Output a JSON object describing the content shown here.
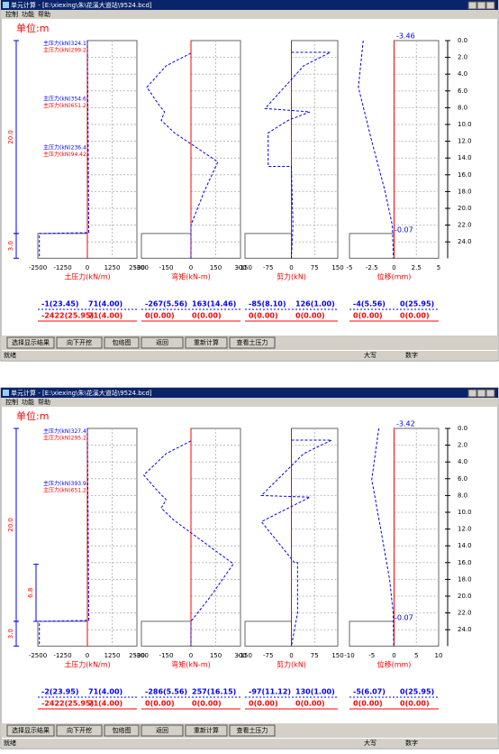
{
  "windows": [
    {
      "title": "单元计算 - [E:\\xiexing\\朱\\花溪大道站\\9524.bcd]",
      "menu": [
        "控制",
        "功能",
        "帮助"
      ],
      "unit": "单位:m",
      "depth_ticks": [
        "0.0",
        "2.0",
        "4.0",
        "6.0",
        "8.0",
        "10.0",
        "12.0",
        "14.0",
        "16.0",
        "18.0",
        "20.0",
        "22.0",
        "24.0"
      ],
      "top_value": "-3.46",
      "bottom_value": "-0.07",
      "dims": [
        "20.0",
        "3.0"
      ],
      "pressure_labels": [
        "主压力(kN)324.1",
        "主压力(kN)299.2",
        "主压力(kN)354.6",
        "主压力(kN)651.2",
        "主压力(kN)236.4",
        "主压力(kN)94.42"
      ],
      "panels": [
        {
          "xticks": [
            "-2500",
            "-1250",
            "0",
            "1250",
            "2500"
          ],
          "xlim": [
            -2500,
            2500
          ],
          "xlabel": "土压力(kN/m)",
          "curve": {
            "depth": [
              0,
              22.9,
              23,
              25.95
            ],
            "value": [
              0,
              71,
              -2422,
              -2422
            ]
          },
          "results": {
            "blue": [
              "-1(23.45)",
              "71(4.00)"
            ],
            "red": [
              "-2422(25.95)",
              "71(4.00)"
            ]
          }
        },
        {
          "xticks": [
            "-300",
            "-150",
            "0",
            "150",
            "300"
          ],
          "xlim": [
            -300,
            300
          ],
          "xlabel": "弯矩(kN-m)",
          "curve": {
            "depth": [
              1.5,
              3,
              5.56,
              7.5,
              8.5,
              9.5,
              11,
              14.46,
              18,
              22,
              25.95
            ],
            "value": [
              0,
              -150,
              -267,
              -200,
              -160,
              -180,
              -100,
              163,
              80,
              0,
              0
            ]
          },
          "results": {
            "blue": [
              "-267(5.56)",
              "163(14.46)"
            ],
            "red": [
              "0(0.00)",
              "0(0.00)"
            ]
          }
        },
        {
          "xticks": [
            "-150",
            "-75",
            "0",
            "75",
            "150"
          ],
          "xlim": [
            -150,
            150
          ],
          "xlabel": "剪力(kN)",
          "curve": {
            "depth": [
              1.4,
              1.4,
              3,
              8.1,
              8.5,
              9.5,
              11,
              15,
              15,
              22,
              25.95
            ],
            "value": [
              0,
              126,
              40,
              -85,
              60,
              -10,
              -75,
              -75,
              0,
              5,
              0
            ]
          },
          "results": {
            "blue": [
              "-85(8.10)",
              "126(1.00)"
            ],
            "red": [
              "0(0.00)",
              "0(0.00)"
            ]
          }
        },
        {
          "xticks": [
            "-5",
            "-2.5",
            "0",
            "2.5",
            "5"
          ],
          "xlim": [
            -5,
            5
          ],
          "xlabel": "位移(mm)",
          "curve": {
            "depth": [
              0,
              5.56,
              12,
              18,
              22,
              25.95
            ],
            "value": [
              -3.46,
              -4,
              -2.5,
              -1,
              -0.2,
              -0.07
            ]
          },
          "results": {
            "blue": [
              "-4(5.56)",
              "0(25.95)"
            ],
            "red": [
              "0(0.00)",
              "0(0.00)"
            ]
          }
        }
      ],
      "buttons": [
        "选择显示结果",
        "向下开挖",
        "包络图",
        "返回",
        "重新计算",
        "查看土压力"
      ],
      "status": [
        "就绪",
        "大写",
        "数字"
      ]
    },
    {
      "title": "单元计算 - [E:\\xiexing\\朱\\花溪大道站\\9524.bcd]",
      "menu": [
        "控制",
        "功能",
        "帮助"
      ],
      "unit": "单位:m",
      "depth_ticks": [
        "0.0",
        "2.0",
        "4.0",
        "6.0",
        "8.0",
        "10.0",
        "12.0",
        "14.0",
        "16.0",
        "18.0",
        "20.0",
        "22.0",
        "24.0"
      ],
      "top_value": "-3.42",
      "bottom_value": "-0.07",
      "dims": [
        "20.0",
        "6.8",
        "3.0"
      ],
      "pressure_labels": [
        "主压力(kN)327.4",
        "主压力(kN)295.2",
        "主压力(kN)393.9",
        "主压力(kN)651.2"
      ],
      "panels": [
        {
          "xticks": [
            "-2500",
            "-1250",
            "0",
            "1250",
            "2500"
          ],
          "xlim": [
            -2500,
            2500
          ],
          "xlabel": "土压力(kN/m)",
          "curve": {
            "depth": [
              0,
              22.9,
              23,
              25.95
            ],
            "value": [
              0,
              71,
              -2422,
              -2422
            ]
          },
          "results": {
            "blue": [
              "-2(23.95)",
              "71(4.00)"
            ],
            "red": [
              "-2422(25.95)",
              "71(4.00)"
            ]
          }
        },
        {
          "xticks": [
            "-300",
            "-150",
            "0",
            "150",
            "300"
          ],
          "xlim": [
            -300,
            300
          ],
          "xlabel": "弯矩(kN-m)",
          "curve": {
            "depth": [
              1.5,
              3,
              5.56,
              7.5,
              8.5,
              9.5,
              11,
              16.15,
              20,
              23,
              25.95
            ],
            "value": [
              0,
              -150,
              -286,
              -200,
              -150,
              -180,
              -100,
              257,
              120,
              0,
              0
            ]
          },
          "results": {
            "blue": [
              "-286(5.56)",
              "257(16.15)"
            ],
            "red": [
              "0(0.00)",
              "0(0.00)"
            ]
          }
        },
        {
          "xticks": [
            "-150",
            "-75",
            "0",
            "75",
            "150"
          ],
          "xlim": [
            -150,
            150
          ],
          "xlabel": "剪力(kN)",
          "curve": {
            "depth": [
              1.4,
              1.4,
              3,
              8,
              8.2,
              9.5,
              11.12,
              16,
              16,
              22,
              25.95
            ],
            "value": [
              0,
              130,
              40,
              -97,
              60,
              -10,
              -97,
              10,
              20,
              20,
              0
            ]
          },
          "results": {
            "blue": [
              "-97(11.12)",
              "130(1.00)"
            ],
            "red": [
              "0(0.00)",
              "0(0.00)"
            ]
          }
        },
        {
          "xticks": [
            "-10",
            "-5",
            "0",
            "5",
            "10"
          ],
          "xlim": [
            -10,
            10
          ],
          "xlabel": "位移(mm)",
          "curve": {
            "depth": [
              0,
              6.07,
              12,
              18,
              22,
              25.95
            ],
            "value": [
              -3.42,
              -5,
              -3,
              -1,
              -0.2,
              -0.07
            ]
          },
          "results": {
            "blue": [
              "-5(6.07)",
              "0(25.95)"
            ],
            "red": [
              "0(0.00)",
              "0(0.00)"
            ]
          }
        }
      ],
      "buttons": [
        "选择显示结果",
        "向下开挖",
        "包络图",
        "返回",
        "重新计算",
        "查看土压力"
      ],
      "status": [
        "就绪",
        "大写",
        "数字"
      ]
    }
  ]
}
